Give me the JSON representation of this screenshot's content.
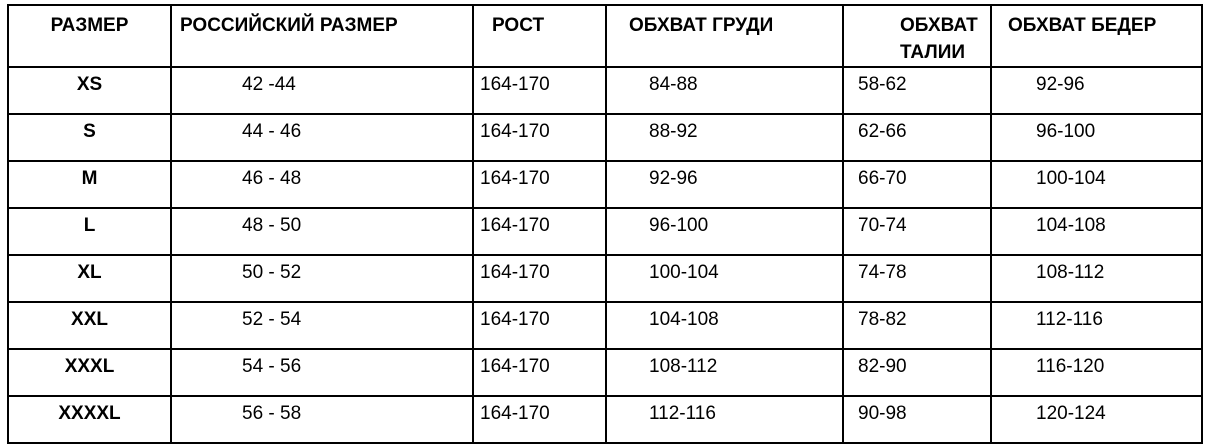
{
  "table": {
    "headers": [
      "РАЗМЕР",
      "РОССИЙСКИЙ РАЗМЕР",
      "РОСТ",
      "ОБХВАТ ГРУДИ",
      "ОБХВАТ ТАЛИИ",
      "ОБХВАТ БЕДЕР"
    ],
    "rows": [
      [
        "XS",
        "42 -44",
        "164-170",
        "84-88",
        "58-62",
        "92-96"
      ],
      [
        "S",
        "44 - 46",
        "164-170",
        "88-92",
        "62-66",
        "96-100"
      ],
      [
        "M",
        "46 - 48",
        "164-170",
        "92-96",
        "66-70",
        "100-104"
      ],
      [
        "L",
        "48 - 50",
        "164-170",
        "96-100",
        "70-74",
        "104-108"
      ],
      [
        "XL",
        "50 - 52",
        "164-170",
        "100-104",
        "74-78",
        "108-112"
      ],
      [
        "XXL",
        "52 - 54",
        "164-170",
        "104-108",
        "78-82",
        "112-116"
      ],
      [
        "XXXL",
        "54 - 56",
        "164-170",
        "108-112",
        "82-90",
        "116-120"
      ],
      [
        "XXXXL",
        "56 - 58",
        "164-170",
        "112-116",
        "90-98",
        "120-124"
      ]
    ]
  }
}
